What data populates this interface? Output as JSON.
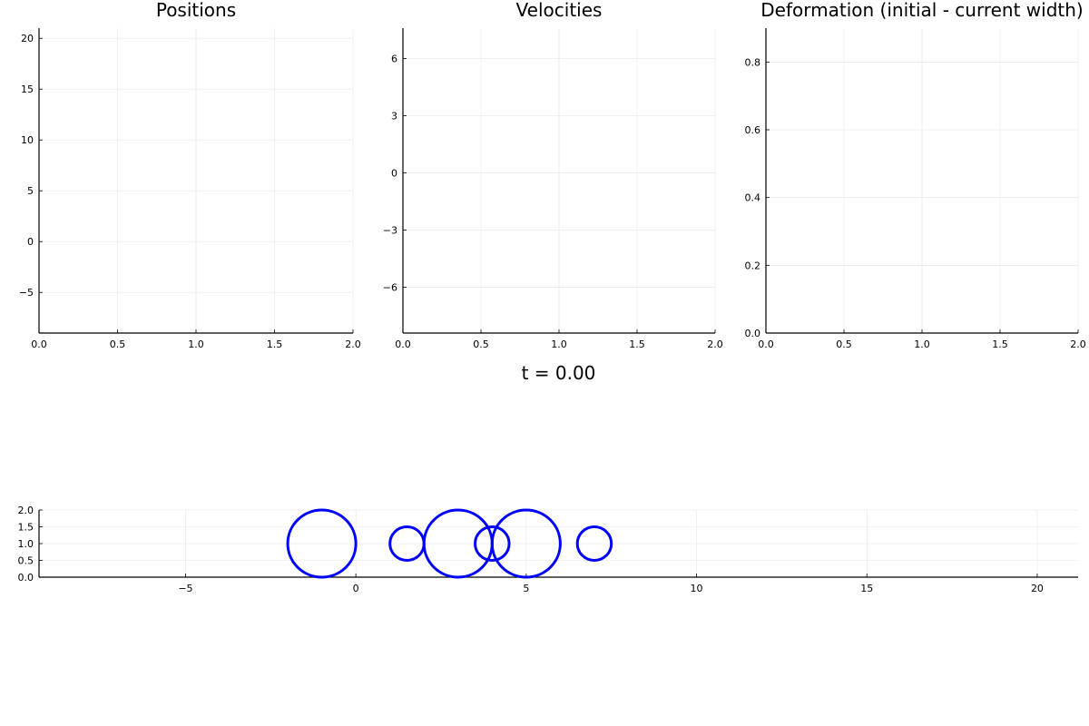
{
  "chart_data": [
    {
      "type": "line",
      "title": "Positions",
      "xlim": [
        0,
        2
      ],
      "ylim": [
        -9,
        21
      ],
      "xticks": [
        0,
        0.5,
        1,
        1.5,
        2
      ],
      "xtick_labels": [
        "0.0",
        "0.5",
        "1.0",
        "1.5",
        "2.0"
      ],
      "yticks": [
        -5,
        0,
        5,
        10,
        15,
        20
      ],
      "ytick_labels": [
        "−5",
        "0",
        "5",
        "10",
        "15",
        "20"
      ],
      "grid": true,
      "series": []
    },
    {
      "type": "line",
      "title": "Velocities",
      "xlim": [
        0,
        2
      ],
      "ylim": [
        -8.4,
        7.6
      ],
      "xticks": [
        0,
        0.5,
        1,
        1.5,
        2
      ],
      "xtick_labels": [
        "0.0",
        "0.5",
        "1.0",
        "1.5",
        "2.0"
      ],
      "yticks": [
        -6,
        -3,
        0,
        3,
        6
      ],
      "ytick_labels": [
        "−6",
        "−3",
        "0",
        "3",
        "6"
      ],
      "grid": true,
      "series": []
    },
    {
      "type": "line",
      "title": "Deformation (initial - current width)",
      "xlim": [
        0,
        2
      ],
      "ylim": [
        0,
        0.9
      ],
      "xticks": [
        0,
        0.5,
        1,
        1.5,
        2
      ],
      "xtick_labels": [
        "0.0",
        "0.5",
        "1.0",
        "1.5",
        "2.0"
      ],
      "yticks": [
        0,
        0.2,
        0.4,
        0.6,
        0.8
      ],
      "ytick_labels": [
        "0.0",
        "0.2",
        "0.4",
        "0.6",
        "0.8"
      ],
      "grid": true,
      "series": []
    },
    {
      "type": "scatter",
      "title": "t = 0.00",
      "xlim": [
        -9.3,
        21.2
      ],
      "ylim": [
        0,
        2
      ],
      "xticks": [
        -5,
        0,
        5,
        10,
        15,
        20
      ],
      "xtick_labels": [
        "−5",
        "0",
        "5",
        "10",
        "15",
        "20"
      ],
      "yticks": [
        0,
        0.5,
        1,
        1.5,
        2
      ],
      "ytick_labels": [
        "0.0",
        "0.5",
        "1.0",
        "1.5",
        "2.0"
      ],
      "grid": true,
      "circle_color": "#0000ff",
      "circles": [
        {
          "x": -1,
          "y": 1,
          "r": 1
        },
        {
          "x": 1.5,
          "y": 1,
          "r": 0.5
        },
        {
          "x": 3,
          "y": 1,
          "r": 1
        },
        {
          "x": 4,
          "y": 1,
          "r": 0.5
        },
        {
          "x": 5,
          "y": 1,
          "r": 1
        },
        {
          "x": 7,
          "y": 1,
          "r": 0.5
        }
      ]
    }
  ]
}
